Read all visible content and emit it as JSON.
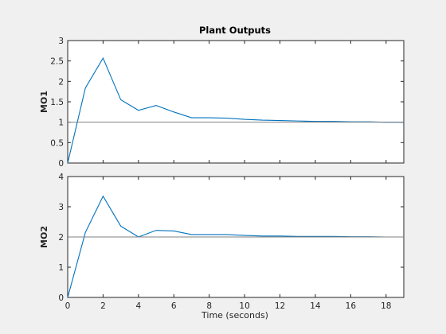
{
  "figure": {
    "title": "Plant Outputs",
    "xlabel": "Time (seconds)"
  },
  "chart_data": [
    {
      "type": "line",
      "title": "Plant Outputs",
      "xlabel": "",
      "ylabel": "MO1",
      "xlim": [
        0,
        19
      ],
      "ylim": [
        0,
        3
      ],
      "xticks": [
        "0",
        "2",
        "4",
        "6",
        "8",
        "10",
        "12",
        "14",
        "16",
        "18"
      ],
      "yticks": [
        "0",
        "0.5",
        "1",
        "1.5",
        "2",
        "2.5",
        "3"
      ],
      "grid": false,
      "series": [
        {
          "color": "#0072bd",
          "x": [
            0,
            1,
            2,
            3,
            4,
            5,
            6,
            7,
            8,
            9,
            10,
            11,
            12,
            13,
            14,
            15,
            16,
            17,
            18,
            19
          ],
          "y": [
            0,
            1.84,
            2.57,
            1.55,
            1.29,
            1.41,
            1.25,
            1.11,
            1.11,
            1.1,
            1.07,
            1.05,
            1.04,
            1.03,
            1.02,
            1.02,
            1.01,
            1.01,
            1.0,
            1.0
          ]
        },
        {
          "color": "#808080",
          "x": [
            0,
            19
          ],
          "y": [
            1,
            1
          ]
        }
      ]
    },
    {
      "type": "line",
      "xlabel": "Time (seconds)",
      "ylabel": "MO2",
      "xlim": [
        0,
        19
      ],
      "ylim": [
        0,
        4
      ],
      "xticks": [
        "0",
        "2",
        "4",
        "6",
        "8",
        "10",
        "12",
        "14",
        "16",
        "18"
      ],
      "yticks": [
        "0",
        "1",
        "2",
        "3",
        "4"
      ],
      "grid": false,
      "series": [
        {
          "color": "#0072bd",
          "x": [
            0,
            1,
            2,
            3,
            4,
            5,
            6,
            7,
            8,
            9,
            10,
            11,
            12,
            13,
            14,
            15,
            16,
            17,
            18,
            19
          ],
          "y": [
            0,
            2.15,
            3.35,
            2.36,
            2.0,
            2.22,
            2.2,
            2.08,
            2.08,
            2.08,
            2.05,
            2.03,
            2.03,
            2.02,
            2.02,
            2.02,
            2.01,
            2.01,
            2.0,
            2.0
          ]
        },
        {
          "color": "#808080",
          "x": [
            0,
            19
          ],
          "y": [
            2,
            2
          ]
        }
      ]
    }
  ]
}
